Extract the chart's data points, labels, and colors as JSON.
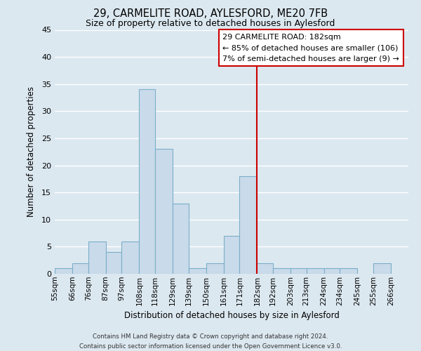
{
  "title": "29, CARMELITE ROAD, AYLESFORD, ME20 7FB",
  "subtitle": "Size of property relative to detached houses in Aylesford",
  "xlabel": "Distribution of detached houses by size in Aylesford",
  "ylabel": "Number of detached properties",
  "bin_labels": [
    "55sqm",
    "66sqm",
    "76sqm",
    "87sqm",
    "97sqm",
    "108sqm",
    "118sqm",
    "129sqm",
    "139sqm",
    "150sqm",
    "161sqm",
    "171sqm",
    "182sqm",
    "192sqm",
    "203sqm",
    "213sqm",
    "224sqm",
    "234sqm",
    "245sqm",
    "255sqm",
    "266sqm"
  ],
  "bin_edges": [
    55,
    66,
    76,
    87,
    97,
    108,
    118,
    129,
    139,
    150,
    161,
    171,
    182,
    192,
    203,
    213,
    224,
    234,
    245,
    255,
    266
  ],
  "counts": [
    1,
    2,
    6,
    4,
    6,
    34,
    23,
    13,
    1,
    2,
    7,
    18,
    2,
    1,
    1,
    1,
    1,
    1,
    0,
    2,
    0
  ],
  "bar_facecolor": "#c9daea",
  "bar_edgecolor": "#7aafc8",
  "background_color": "#dce8f0",
  "grid_color": "#ffffff",
  "vline_x": 182,
  "vline_color": "#cc0000",
  "annotation_title": "29 CARMELITE ROAD: 182sqm",
  "annotation_line1": "← 85% of detached houses are smaller (106)",
  "annotation_line2": "7% of semi-detached houses are larger (9) →",
  "annotation_box_facecolor": "#ffffff",
  "annotation_box_edgecolor": "#cc0000",
  "ylim": [
    0,
    45
  ],
  "yticks": [
    0,
    5,
    10,
    15,
    20,
    25,
    30,
    35,
    40,
    45
  ],
  "footnote1": "Contains HM Land Registry data © Crown copyright and database right 2024.",
  "footnote2": "Contains public sector information licensed under the Open Government Licence v3.0."
}
